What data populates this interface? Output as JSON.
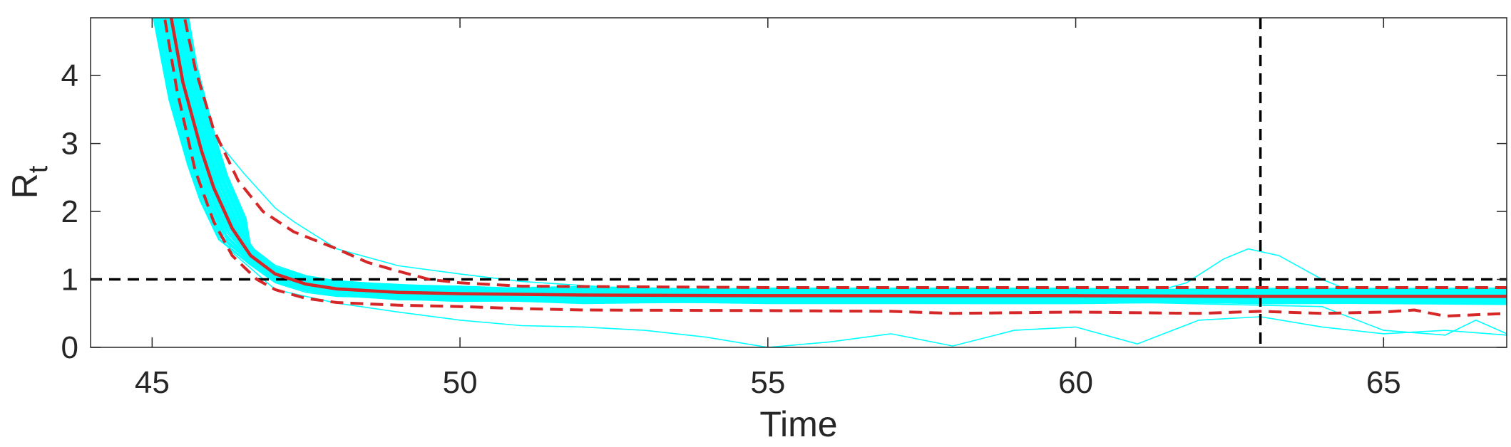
{
  "chart_data": {
    "type": "line",
    "xlabel": "Time",
    "ylabel": {
      "main": "R",
      "subscript": "t"
    },
    "xlim": [
      44,
      67
    ],
    "ylim": [
      0,
      4.85
    ],
    "xticks": [
      45,
      50,
      55,
      60,
      65
    ],
    "yticks": [
      0,
      1,
      2,
      3,
      4
    ],
    "grid": false,
    "legend": "none",
    "reference_lines": [
      {
        "orientation": "horizontal",
        "value": 1,
        "style": "dashed",
        "color": "#000000"
      },
      {
        "orientation": "vertical",
        "value": 63,
        "style": "dashed",
        "color": "#000000"
      }
    ],
    "ensemble": {
      "color": "#00FFFF",
      "count": 60,
      "band_center": [
        [
          45.2,
          5.4
        ],
        [
          45.5,
          3.9
        ],
        [
          45.8,
          2.9
        ],
        [
          46.0,
          2.35
        ],
        [
          46.3,
          1.75
        ],
        [
          46.6,
          1.35
        ],
        [
          47.0,
          1.08
        ],
        [
          47.5,
          0.93
        ],
        [
          48.0,
          0.86
        ],
        [
          49.0,
          0.81
        ],
        [
          50.0,
          0.79
        ],
        [
          52.0,
          0.77
        ],
        [
          55.0,
          0.76
        ],
        [
          60.0,
          0.76
        ],
        [
          63.0,
          0.75
        ],
        [
          67.0,
          0.75
        ]
      ],
      "band_halfwidth": 0.1,
      "outliers": [
        {
          "name": "outlier-high",
          "points": [
            [
              45.2,
              5.4
            ],
            [
              45.6,
              3.8
            ],
            [
              46.0,
              3.1
            ],
            [
              46.5,
              2.55
            ],
            [
              47.0,
              2.05
            ],
            [
              47.3,
              1.85
            ],
            [
              48.0,
              1.45
            ],
            [
              49.0,
              1.2
            ],
            [
              50.0,
              1.08
            ],
            [
              51.0,
              0.97
            ],
            [
              53.0,
              0.85
            ],
            [
              56.0,
              0.8
            ],
            [
              67.0,
              0.78
            ]
          ]
        },
        {
          "name": "outlier-low",
          "points": [
            [
              45.2,
              5.4
            ],
            [
              45.8,
              2.6
            ],
            [
              46.3,
              1.4
            ],
            [
              47.0,
              0.85
            ],
            [
              48.0,
              0.65
            ],
            [
              49.0,
              0.52
            ],
            [
              50.0,
              0.4
            ],
            [
              51.0,
              0.32
            ],
            [
              52.0,
              0.3
            ],
            [
              53.0,
              0.25
            ],
            [
              54.0,
              0.15
            ],
            [
              55.0,
              0.0
            ],
            [
              56.0,
              0.08
            ],
            [
              57.0,
              0.2
            ],
            [
              58.0,
              0.02
            ],
            [
              59.0,
              0.25
            ],
            [
              60.0,
              0.3
            ],
            [
              61.0,
              0.05
            ],
            [
              62.0,
              0.4
            ],
            [
              63.0,
              0.45
            ],
            [
              64.0,
              0.3
            ],
            [
              65.0,
              0.2
            ],
            [
              66.0,
              0.25
            ],
            [
              67.0,
              0.18
            ]
          ]
        },
        {
          "name": "outlier-bump",
          "points": [
            [
              45.2,
              5.4
            ],
            [
              46.0,
              2.2
            ],
            [
              47.0,
              1.05
            ],
            [
              48.0,
              0.85
            ],
            [
              55.0,
              0.75
            ],
            [
              61.0,
              0.75
            ],
            [
              61.8,
              0.95
            ],
            [
              62.4,
              1.3
            ],
            [
              62.8,
              1.45
            ],
            [
              63.3,
              1.35
            ],
            [
              64.0,
              1.0
            ],
            [
              64.6,
              0.78
            ],
            [
              67.0,
              0.75
            ]
          ]
        },
        {
          "name": "outlier-tail",
          "points": [
            [
              45.2,
              5.4
            ],
            [
              46.0,
              2.3
            ],
            [
              47.0,
              1.0
            ],
            [
              50.0,
              0.7
            ],
            [
              60.0,
              0.68
            ],
            [
              64.0,
              0.6
            ],
            [
              65.0,
              0.25
            ],
            [
              66.0,
              0.18
            ],
            [
              66.5,
              0.4
            ],
            [
              67.0,
              0.2
            ]
          ]
        }
      ]
    },
    "series": [
      {
        "name": "",
        "style": "solid",
        "color": "#D62728",
        "points": [
          [
            45.2,
            5.4
          ],
          [
            45.5,
            3.9
          ],
          [
            45.8,
            2.9
          ],
          [
            46.0,
            2.35
          ],
          [
            46.3,
            1.75
          ],
          [
            46.6,
            1.35
          ],
          [
            47.0,
            1.08
          ],
          [
            47.5,
            0.93
          ],
          [
            48.0,
            0.86
          ],
          [
            49.0,
            0.81
          ],
          [
            50.0,
            0.79
          ],
          [
            52.0,
            0.77
          ],
          [
            55.0,
            0.76
          ],
          [
            60.0,
            0.76
          ],
          [
            63.0,
            0.75
          ],
          [
            67.0,
            0.75
          ]
        ]
      },
      {
        "name": "",
        "style": "dashed",
        "color": "#D62728",
        "points": [
          [
            45.4,
            5.4
          ],
          [
            45.7,
            4.1
          ],
          [
            46.0,
            3.2
          ],
          [
            46.4,
            2.45
          ],
          [
            46.8,
            2.0
          ],
          [
            47.3,
            1.7
          ],
          [
            48.0,
            1.45
          ],
          [
            48.5,
            1.25
          ],
          [
            49.0,
            1.12
          ],
          [
            49.5,
            1.0
          ],
          [
            50.0,
            0.95
          ],
          [
            51.0,
            0.9
          ],
          [
            53.0,
            0.89
          ],
          [
            55.0,
            0.88
          ],
          [
            60.0,
            0.88
          ],
          [
            63.0,
            0.88
          ],
          [
            67.0,
            0.88
          ]
        ]
      },
      {
        "name": "",
        "style": "dashed",
        "color": "#D62728",
        "points": [
          [
            45.1,
            5.4
          ],
          [
            45.4,
            3.8
          ],
          [
            45.7,
            2.6
          ],
          [
            46.0,
            1.85
          ],
          [
            46.3,
            1.35
          ],
          [
            46.7,
            1.0
          ],
          [
            47.0,
            0.85
          ],
          [
            47.5,
            0.72
          ],
          [
            48.0,
            0.66
          ],
          [
            49.0,
            0.62
          ],
          [
            50.0,
            0.6
          ],
          [
            51.0,
            0.57
          ],
          [
            52.0,
            0.55
          ],
          [
            55.0,
            0.54
          ],
          [
            57.0,
            0.53
          ],
          [
            58.0,
            0.5
          ],
          [
            60.0,
            0.52
          ],
          [
            62.0,
            0.5
          ],
          [
            63.0,
            0.53
          ],
          [
            64.0,
            0.5
          ],
          [
            65.0,
            0.52
          ],
          [
            65.5,
            0.55
          ],
          [
            66.0,
            0.46
          ],
          [
            67.0,
            0.5
          ]
        ]
      }
    ]
  }
}
